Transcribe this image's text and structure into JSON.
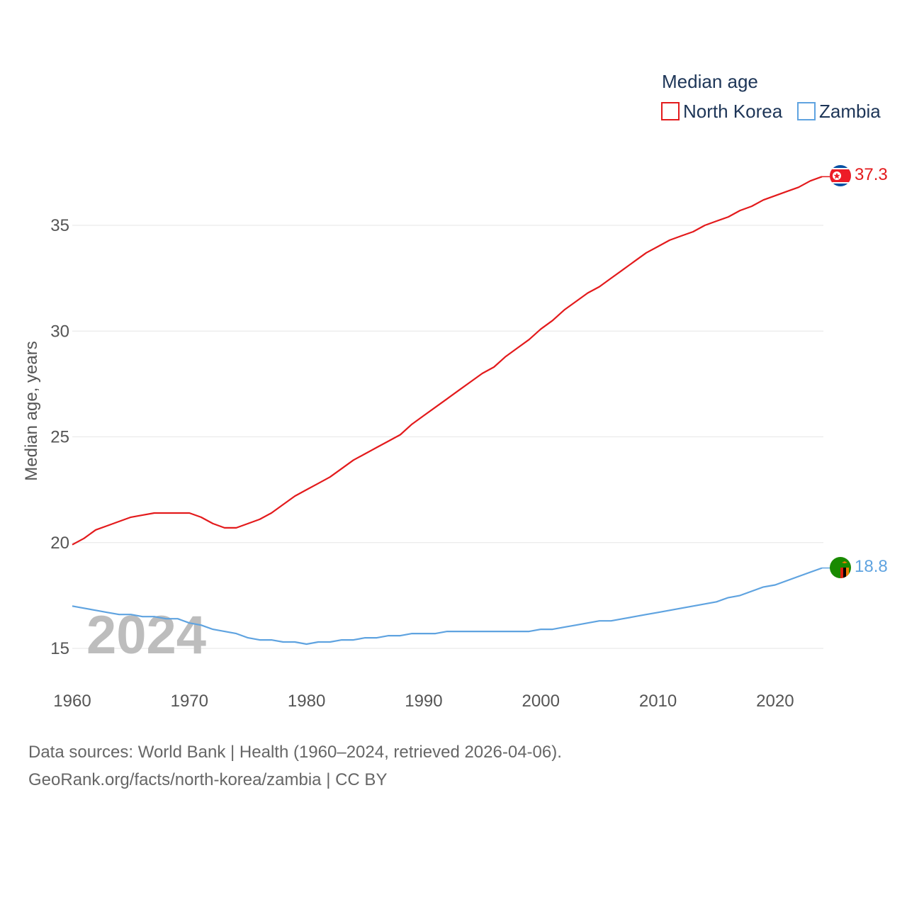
{
  "chart_data": {
    "type": "line",
    "title": "",
    "legend_title": "Median age",
    "xlabel": "",
    "ylabel": "Median age, years",
    "xlim": [
      1960,
      2024
    ],
    "ylim": [
      14,
      38.5
    ],
    "x_ticks": [
      1960,
      1970,
      1980,
      1990,
      2000,
      2010,
      2020
    ],
    "y_ticks": [
      15,
      20,
      25,
      30,
      35
    ],
    "highlight_year": "2024",
    "x": [
      1960,
      1961,
      1962,
      1963,
      1964,
      1965,
      1966,
      1967,
      1968,
      1969,
      1970,
      1971,
      1972,
      1973,
      1974,
      1975,
      1976,
      1977,
      1978,
      1979,
      1980,
      1981,
      1982,
      1983,
      1984,
      1985,
      1986,
      1987,
      1988,
      1989,
      1990,
      1991,
      1992,
      1993,
      1994,
      1995,
      1996,
      1997,
      1998,
      1999,
      2000,
      2001,
      2002,
      2003,
      2004,
      2005,
      2006,
      2007,
      2008,
      2009,
      2010,
      2011,
      2012,
      2013,
      2014,
      2015,
      2016,
      2017,
      2018,
      2019,
      2020,
      2021,
      2022,
      2023,
      2024
    ],
    "series": [
      {
        "name": "North Korea",
        "color": "#e31a1c",
        "end_label": "37.3",
        "values": [
          19.9,
          20.2,
          20.6,
          20.8,
          21.0,
          21.2,
          21.3,
          21.4,
          21.4,
          21.4,
          21.4,
          21.2,
          20.9,
          20.7,
          20.7,
          20.9,
          21.1,
          21.4,
          21.8,
          22.2,
          22.5,
          22.8,
          23.1,
          23.5,
          23.9,
          24.2,
          24.5,
          24.8,
          25.1,
          25.6,
          26.0,
          26.4,
          26.8,
          27.2,
          27.6,
          28.0,
          28.3,
          28.8,
          29.2,
          29.6,
          30.1,
          30.5,
          31.0,
          31.4,
          31.8,
          32.1,
          32.5,
          32.9,
          33.3,
          33.7,
          34.0,
          34.3,
          34.5,
          34.7,
          35.0,
          35.2,
          35.4,
          35.7,
          35.9,
          36.2,
          36.4,
          36.6,
          36.8,
          37.1,
          37.3
        ]
      },
      {
        "name": "Zambia",
        "color": "#5fa3e0",
        "end_label": "18.8",
        "values": [
          17.0,
          16.9,
          16.8,
          16.7,
          16.6,
          16.6,
          16.5,
          16.5,
          16.4,
          16.4,
          16.2,
          16.1,
          15.9,
          15.8,
          15.7,
          15.5,
          15.4,
          15.4,
          15.3,
          15.3,
          15.2,
          15.3,
          15.3,
          15.4,
          15.4,
          15.5,
          15.5,
          15.6,
          15.6,
          15.7,
          15.7,
          15.7,
          15.8,
          15.8,
          15.8,
          15.8,
          15.8,
          15.8,
          15.8,
          15.8,
          15.9,
          15.9,
          16.0,
          16.1,
          16.2,
          16.3,
          16.3,
          16.4,
          16.5,
          16.6,
          16.7,
          16.8,
          16.9,
          17.0,
          17.1,
          17.2,
          17.4,
          17.5,
          17.7,
          17.9,
          18.0,
          18.2,
          18.4,
          18.6,
          18.8
        ]
      }
    ]
  },
  "source": {
    "line1": "Data sources: World Bank | Health (1960–2024, retrieved 2026-04-06).",
    "line2": "GeoRank.org/facts/north-korea/zambia | CC BY"
  }
}
